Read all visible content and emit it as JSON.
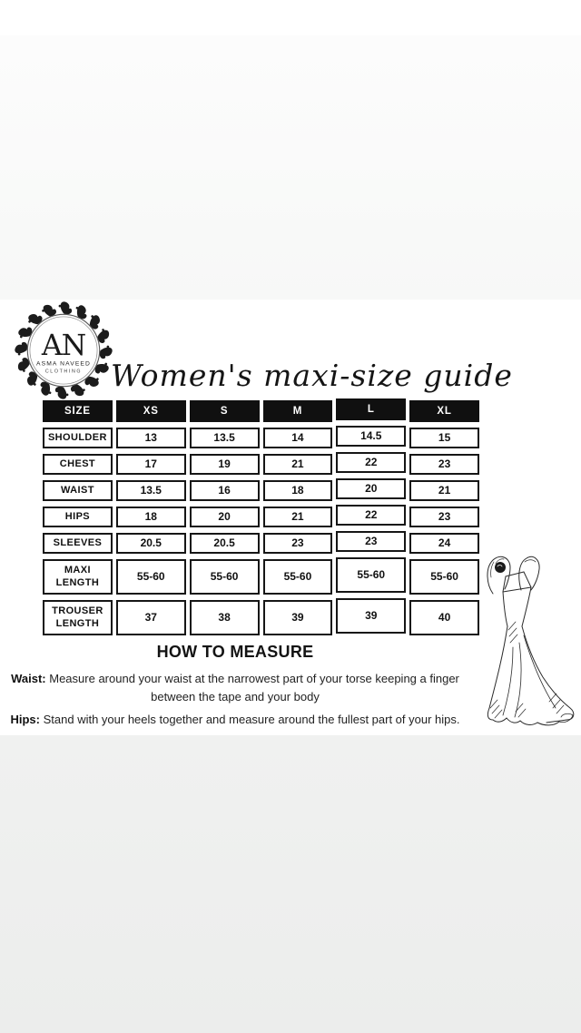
{
  "logo": {
    "monogram": "AN",
    "name_line1": "ASMA NAVEED",
    "name_line2": "CLOTHING"
  },
  "title": "Women's maxi-size guide",
  "size_table": {
    "columns": [
      "SIZE",
      "XS",
      "S",
      "M",
      "L",
      "XL"
    ],
    "rows": [
      {
        "label": "SHOULDER",
        "values": [
          "13",
          "13.5",
          "14",
          "14.5",
          "15"
        ]
      },
      {
        "label": "CHEST",
        "values": [
          "17",
          "19",
          "21",
          "22",
          "23"
        ]
      },
      {
        "label": "WAIST",
        "values": [
          "13.5",
          "16",
          "18",
          "20",
          "21"
        ]
      },
      {
        "label": "HIPS",
        "values": [
          "18",
          "20",
          "21",
          "22",
          "23"
        ]
      },
      {
        "label": "SLEEVES",
        "values": [
          "20.5",
          "20.5",
          "23",
          "23",
          "24"
        ]
      },
      {
        "label": "MAXI LENGTH",
        "values": [
          "55-60",
          "55-60",
          "55-60",
          "55-60",
          "55-60"
        ]
      },
      {
        "label": "TROUSER LENGTH",
        "values": [
          "37",
          "38",
          "39",
          "39",
          "40"
        ]
      }
    ]
  },
  "how_to_measure": {
    "heading": "HOW TO MEASURE",
    "items": [
      {
        "label": "Waist:",
        "text": "Measure around your waist at the narrowest part of your torse keeping a finger between the tape and your body"
      },
      {
        "label": "Hips:",
        "text": "Stand with your heels together and measure  around the fullest part of your hips."
      }
    ]
  },
  "illustration": {
    "name": "maxi-dress-sketch"
  },
  "colors": {
    "ink": "#111111",
    "table_header_bg": "#101010",
    "table_header_text": "#ffffff",
    "cell_border": "#161616",
    "sheet_bg": "#ffffff",
    "upper_band_bg": "#fafafa",
    "bottom_band_bg": "#eeeeee"
  }
}
